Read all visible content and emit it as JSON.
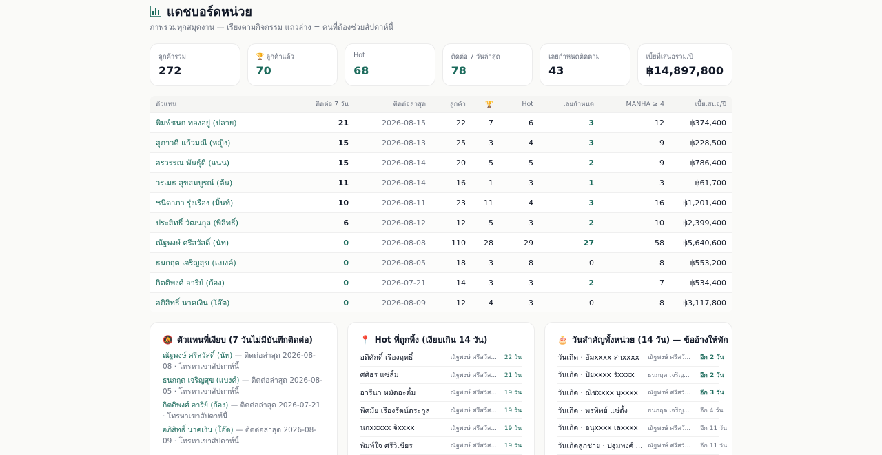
{
  "header": {
    "icon": "bar-chart-icon",
    "title": "แดชบอร์ดหน่วย",
    "subtitle": "ภาพรวมทุกสมุดงาน — เรียงตามกิจกรรม แถวล่าง = คนที่ต้องช่วยสัปดาห์นี้"
  },
  "cards": [
    {
      "label": "ลูกค้ารวม",
      "value": "272",
      "icon": ""
    },
    {
      "label": "ลูกค้าแล้ว",
      "value": "70",
      "icon": "trophy-icon"
    },
    {
      "label": "Hot",
      "value": "68",
      "icon": ""
    },
    {
      "label": "ติดต่อ 7 วันล่าสุด",
      "value": "78",
      "icon": ""
    },
    {
      "label": "เลยกำหนดติดตาม",
      "value": "43",
      "icon": ""
    },
    {
      "label": "เบี้ยที่เสนอรวม/ปี",
      "value": "฿14,897,800",
      "icon": ""
    }
  ],
  "table": {
    "headers": [
      "ตัวแทน",
      "ติดต่อ 7 วัน",
      "ติดต่อล่าสุด",
      "ลูกค้า",
      "🏆",
      "Hot",
      "เลยกำหนด",
      "MANHA ≥ 4",
      "เบี้ยเสนอ/ปี"
    ],
    "rows": [
      [
        "พิมพ์ชนก ทองอยู่ (ปลาย)",
        "21",
        "2026-08-15",
        "22",
        "7",
        "6",
        "3",
        "12",
        "฿374,400"
      ],
      [
        "สุภาวดี แก้วมณี (หญิง)",
        "15",
        "2026-08-13",
        "25",
        "3",
        "4",
        "3",
        "9",
        "฿228,500"
      ],
      [
        "อรวรรณ พันธุ์ดี (แนน)",
        "15",
        "2026-08-14",
        "20",
        "5",
        "5",
        "2",
        "9",
        "฿786,400"
      ],
      [
        "วรเมธ สุขสมบูรณ์ (ต้น)",
        "11",
        "2026-08-14",
        "16",
        "1",
        "3",
        "1",
        "3",
        "฿61,700"
      ],
      [
        "ชนิดาภา รุ่งเรือง (มิ้นท์)",
        "10",
        "2026-08-11",
        "23",
        "11",
        "4",
        "3",
        "16",
        "฿1,201,400"
      ],
      [
        "ประสิทธิ์ วัฒนกุล (พี่สิทธิ์)",
        "6",
        "2026-08-12",
        "12",
        "5",
        "3",
        "2",
        "10",
        "฿2,399,400"
      ],
      [
        "ณัฐพงษ์ ศรีสวัสดิ์ (นัท)",
        "0",
        "2026-08-08",
        "110",
        "28",
        "29",
        "27",
        "58",
        "฿5,640,600"
      ],
      [
        "ธนกฤต เจริญสุข (แบงค์)",
        "0",
        "2026-08-05",
        "18",
        "3",
        "8",
        "0",
        "8",
        "฿553,200"
      ],
      [
        "กิตติพงศ์ อารีย์ (ก้อง)",
        "0",
        "2026-07-21",
        "14",
        "3",
        "3",
        "2",
        "7",
        "฿534,400"
      ],
      [
        "อภิสิทธิ์ นาคเงิน (โอ๊ต)",
        "0",
        "2026-08-09",
        "12",
        "4",
        "3",
        "0",
        "8",
        "฿3,117,800"
      ]
    ]
  },
  "quiet_panel": {
    "icon": "bell-off-icon",
    "title": "ตัวแทนที่เงียบ (7 วันไม่มีบันทึกติดต่อ)",
    "items": [
      {
        "name": "ณัฐพงษ์ ศรีสวัสดิ์ (นัท)",
        "rest": " — ติดต่อล่าสุด 2026-08-08 · โทรหาเขาสัปดาห์นี้"
      },
      {
        "name": "ธนกฤต เจริญสุข (แบงค์)",
        "rest": " — ติดต่อล่าสุด 2026-08-05 · โทรหาเขาสัปดาห์นี้"
      },
      {
        "name": "กิตติพงศ์ อารีย์ (ก้อง)",
        "rest": " — ติดต่อล่าสุด 2026-07-21 · โทรหาเขาสัปดาห์นี้"
      },
      {
        "name": "อภิสิทธิ์ นาคเงิน (โอ๊ต)",
        "rest": " — ติดต่อล่าสุด 2026-08-09 · โทรหาเขาสัปดาห์นี้"
      }
    ]
  },
  "hot_panel": {
    "icon": "pin-icon",
    "title": "Hot ที่ถูกทิ้ง (เงียบเกิน 14 วัน)",
    "rows": [
      [
        "อดิศักดิ์ เรืองฤทธิ์",
        "ณัฐพงษ์ ศรีสวัส...",
        "22 วัน"
      ],
      [
        "ศศิธร แซ่ลิ้ม",
        "ณัฐพงษ์ ศรีสวัส...",
        "21 วัน"
      ],
      [
        "อารีนา หมัดอะดั้ม",
        "ณัฐพงษ์ ศรีสวัส...",
        "19 วัน"
      ],
      [
        "พิศมัย เรืองรัตน์ตระกูล",
        "ณัฐพงษ์ ศรีสวัส...",
        "19 วัน"
      ],
      [
        "นกxxxxx จิxxxx",
        "ณัฐพงษ์ ศรีสวัส...",
        "19 วัน"
      ],
      [
        "พิมพ์ใจ ศรีวิเชียร",
        "ณัฐพงษ์ ศรีสวัส...",
        "19 วัน"
      ]
    ]
  },
  "dates_panel": {
    "icon": "cake-icon",
    "title": "วันสำคัญทั้งหน่วย (14 วัน) — ข้ออ้างให้ทัก",
    "rows": [
      [
        "วันเกิด · อัมxxxx สาxxxx",
        "ณัฐพงษ์ ศรีสวั...",
        "อีก 2 วัน"
      ],
      [
        "วันเกิด · ปิยxxxx รัxxxx",
        "ธนกฤต เจริญ...",
        "อีก 2 วัน"
      ],
      [
        "วันเกิด · ณิชxxxx บุxxxx",
        "ณัฐพงษ์ ศรีสวั...",
        "อีก 3 วัน"
      ],
      [
        "วันเกิด · พรทิพย์ แซ่ตั้ง",
        "ธนกฤต เจริญ...",
        "อีก 4 วัน"
      ],
      [
        "วันเกิด · อนุxxxx เลxxxx",
        "ณัฐพงษ์ ศรีสวั...",
        "อีก 11 วัน"
      ],
      [
        "วันเกิดลูกชาย · ปฐมพงศ์ ...",
        "ณัฐพงษ์ ศรีสวั...",
        "อีก 11 วัน"
      ]
    ]
  },
  "colors": {
    "accent": "#1c6b5c",
    "background": "#fafaf8"
  }
}
